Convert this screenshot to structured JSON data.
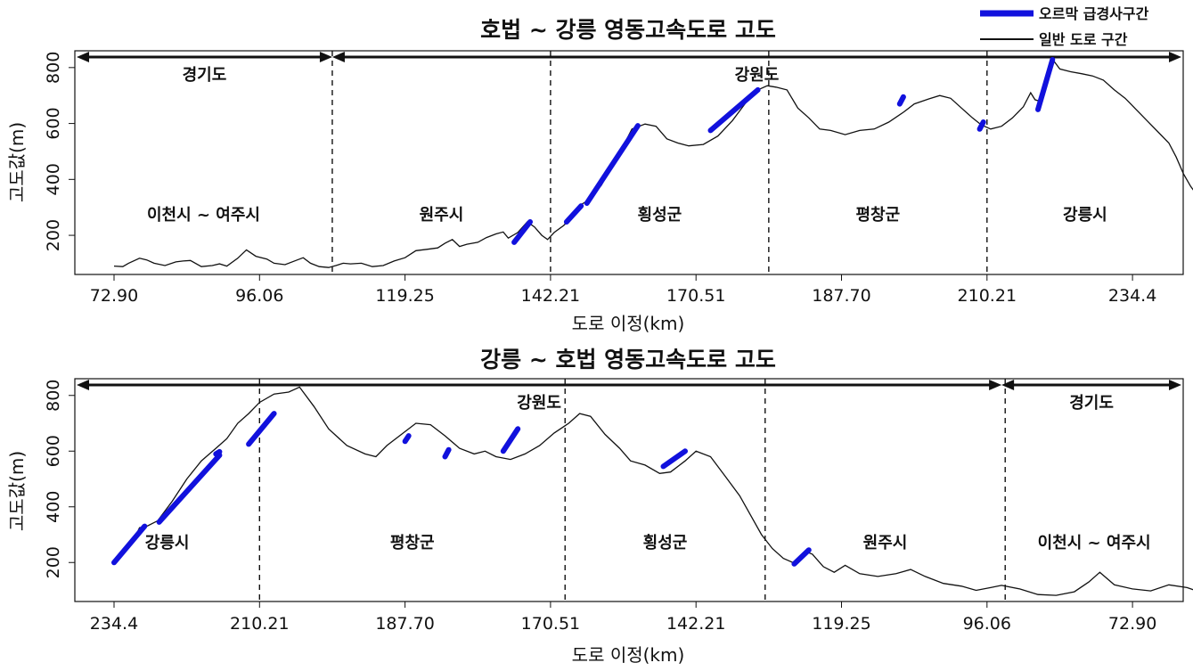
{
  "legend": {
    "steep": "오르막 급경사구간",
    "normal": "일반 도로 구간",
    "steep_color": "#1111dd",
    "normal_color": "#111111"
  },
  "chart_data": [
    {
      "type": "line",
      "title": "호법 ~ 강릉 영동고속도로 고도",
      "xlabel": "도로 이정(km)",
      "ylabel": "고도값(m)",
      "ylim": [
        60,
        860
      ],
      "yticks": [
        200,
        400,
        600,
        800
      ],
      "xticks": [
        "72.90",
        "96.06",
        "119.25",
        "142.21",
        "170.51",
        "187.70",
        "210.21",
        "234.4"
      ],
      "provinces": [
        {
          "name": "경기도",
          "from": 0,
          "to": 3
        },
        {
          "name": "강원도",
          "from": 3,
          "to": 8
        }
      ],
      "regions": [
        "이천시 ~ 여주시",
        "원주시",
        "횡성군",
        "평창군",
        "강릉시"
      ],
      "boundaries": [
        3,
        6,
        9,
        12
      ],
      "profile": [
        [
          0,
          90
        ],
        [
          0.12,
          88
        ],
        [
          0.2,
          100
        ],
        [
          0.35,
          118
        ],
        [
          0.45,
          112
        ],
        [
          0.55,
          100
        ],
        [
          0.7,
          92
        ],
        [
          0.85,
          105
        ],
        [
          0.95,
          108
        ],
        [
          1.05,
          110
        ],
        [
          1.2,
          88
        ],
        [
          1.35,
          92
        ],
        [
          1.45,
          98
        ],
        [
          1.55,
          90
        ],
        [
          1.7,
          118
        ],
        [
          1.82,
          148
        ],
        [
          1.95,
          125
        ],
        [
          2.1,
          115
        ],
        [
          2.2,
          100
        ],
        [
          2.35,
          95
        ],
        [
          2.5,
          110
        ],
        [
          2.6,
          120
        ],
        [
          2.7,
          100
        ],
        [
          2.82,
          88
        ],
        [
          2.95,
          85
        ],
        [
          3.05,
          92
        ],
        [
          3.15,
          100
        ],
        [
          3.25,
          98
        ],
        [
          3.4,
          100
        ],
        [
          3.55,
          88
        ],
        [
          3.7,
          92
        ],
        [
          3.85,
          108
        ],
        [
          4.0,
          120
        ],
        [
          4.15,
          145
        ],
        [
          4.3,
          150
        ],
        [
          4.45,
          155
        ],
        [
          4.55,
          172
        ],
        [
          4.65,
          185
        ],
        [
          4.75,
          160
        ],
        [
          4.85,
          168
        ],
        [
          5.0,
          175
        ],
        [
          5.12,
          192
        ],
        [
          5.25,
          205
        ],
        [
          5.35,
          212
        ],
        [
          5.42,
          190
        ],
        [
          5.55,
          210
        ],
        [
          5.68,
          248
        ],
        [
          5.78,
          230
        ],
        [
          5.88,
          200
        ],
        [
          5.96,
          185
        ],
        [
          6.05,
          210
        ],
        [
          6.18,
          235
        ],
        [
          6.32,
          270
        ],
        [
          6.42,
          310
        ],
        [
          6.55,
          330
        ],
        [
          6.7,
          380
        ],
        [
          6.85,
          450
        ],
        [
          7.0,
          520
        ],
        [
          7.12,
          580
        ],
        [
          7.3,
          598
        ],
        [
          7.45,
          590
        ],
        [
          7.6,
          545
        ],
        [
          7.75,
          530
        ],
        [
          7.9,
          520
        ],
        [
          8.1,
          525
        ],
        [
          8.3,
          555
        ],
        [
          8.5,
          610
        ],
        [
          8.7,
          680
        ],
        [
          8.85,
          720
        ],
        [
          8.98,
          735
        ],
        [
          9.1,
          730
        ],
        [
          9.25,
          720
        ],
        [
          9.4,
          655
        ],
        [
          9.55,
          620
        ],
        [
          9.7,
          580
        ],
        [
          9.85,
          575
        ],
        [
          10.05,
          560
        ],
        [
          10.25,
          575
        ],
        [
          10.45,
          580
        ],
        [
          10.65,
          605
        ],
        [
          10.85,
          640
        ],
        [
          11.0,
          670
        ],
        [
          11.2,
          688
        ],
        [
          11.35,
          700
        ],
        [
          11.5,
          690
        ],
        [
          11.65,
          655
        ],
        [
          11.8,
          620
        ],
        [
          11.92,
          595
        ],
        [
          12.05,
          580
        ],
        [
          12.2,
          590
        ],
        [
          12.35,
          620
        ],
        [
          12.5,
          660
        ],
        [
          12.6,
          710
        ],
        [
          12.66,
          685
        ],
        [
          12.72,
          680
        ],
        [
          12.82,
          760
        ],
        [
          12.9,
          830
        ],
        [
          13.0,
          795
        ],
        [
          13.15,
          785
        ],
        [
          13.3,
          778
        ],
        [
          13.45,
          770
        ],
        [
          13.6,
          755
        ],
        [
          13.75,
          720
        ],
        [
          13.9,
          690
        ],
        [
          14.05,
          650
        ],
        [
          14.2,
          610
        ],
        [
          14.35,
          570
        ],
        [
          14.5,
          530
        ],
        [
          14.6,
          480
        ],
        [
          14.7,
          420
        ],
        [
          14.8,
          375
        ],
        [
          14.9,
          340
        ],
        [
          14.98,
          320
        ],
        [
          15.05,
          300
        ],
        [
          15.12,
          255
        ],
        [
          15.18,
          280
        ],
        [
          15.25,
          225
        ]
      ],
      "steep": [
        [
          [
            5.5,
            175
          ],
          [
            5.72,
            248
          ]
        ],
        [
          [
            6.22,
            248
          ],
          [
            6.42,
            305
          ]
        ],
        [
          [
            6.5,
            315
          ],
          [
            7.2,
            592
          ]
        ],
        [
          [
            8.2,
            575
          ],
          [
            8.85,
            720
          ]
        ],
        [
          [
            10.8,
            670
          ],
          [
            10.85,
            695
          ]
        ],
        [
          [
            11.9,
            580
          ],
          [
            11.95,
            605
          ]
        ],
        [
          [
            12.7,
            650
          ],
          [
            12.9,
            828
          ]
        ]
      ]
    },
    {
      "type": "line",
      "title": "강릉 ~ 호법 영동고속도로 고도",
      "xlabel": "도로 이정(km)",
      "ylabel": "고도값(m)",
      "ylim": [
        60,
        860
      ],
      "yticks": [
        200,
        400,
        600,
        800
      ],
      "xticks": [
        "234.4",
        "210.21",
        "187.70",
        "170.51",
        "142.21",
        "119.25",
        "96.06",
        "72.90"
      ],
      "provinces": [
        {
          "name": "강원도",
          "from": 0,
          "to": 12.2
        },
        {
          "name": "경기도",
          "from": 12.2,
          "to": 15.2
        }
      ],
      "regions": [
        "강릉시",
        "평창군",
        "횡성군",
        "원주시",
        "이천시 ~ 여주시"
      ],
      "boundaries": [
        2.0,
        6.2,
        8.95,
        12.25
      ],
      "profile": [
        [
          0,
          205
        ],
        [
          0.25,
          270
        ],
        [
          0.35,
          325
        ],
        [
          0.45,
          330
        ],
        [
          0.6,
          350
        ],
        [
          0.8,
          420
        ],
        [
          1.0,
          500
        ],
        [
          1.2,
          565
        ],
        [
          1.4,
          610
        ],
        [
          1.55,
          645
        ],
        [
          1.7,
          700
        ],
        [
          1.85,
          735
        ],
        [
          2.0,
          775
        ],
        [
          2.2,
          805
        ],
        [
          2.4,
          812
        ],
        [
          2.55,
          830
        ],
        [
          2.75,
          760
        ],
        [
          2.95,
          680
        ],
        [
          3.2,
          620
        ],
        [
          3.45,
          590
        ],
        [
          3.6,
          580
        ],
        [
          3.75,
          620
        ],
        [
          3.95,
          660
        ],
        [
          4.15,
          700
        ],
        [
          4.35,
          695
        ],
        [
          4.55,
          655
        ],
        [
          4.75,
          610
        ],
        [
          4.95,
          590
        ],
        [
          5.1,
          600
        ],
        [
          5.25,
          580
        ],
        [
          5.45,
          570
        ],
        [
          5.65,
          590
        ],
        [
          5.85,
          620
        ],
        [
          6.05,
          665
        ],
        [
          6.25,
          700
        ],
        [
          6.4,
          735
        ],
        [
          6.55,
          725
        ],
        [
          6.75,
          660
        ],
        [
          6.95,
          610
        ],
        [
          7.1,
          565
        ],
        [
          7.3,
          550
        ],
        [
          7.5,
          520
        ],
        [
          7.65,
          525
        ],
        [
          7.85,
          565
        ],
        [
          8.0,
          600
        ],
        [
          8.2,
          580
        ],
        [
          8.4,
          510
        ],
        [
          8.6,
          440
        ],
        [
          8.75,
          370
        ],
        [
          8.9,
          300
        ],
        [
          9.05,
          250
        ],
        [
          9.2,
          215
        ],
        [
          9.35,
          198
        ],
        [
          9.5,
          240
        ],
        [
          9.6,
          230
        ],
        [
          9.75,
          185
        ],
        [
          9.9,
          165
        ],
        [
          10.05,
          190
        ],
        [
          10.25,
          160
        ],
        [
          10.5,
          150
        ],
        [
          10.75,
          160
        ],
        [
          10.95,
          175
        ],
        [
          11.15,
          150
        ],
        [
          11.4,
          125
        ],
        [
          11.65,
          115
        ],
        [
          11.85,
          100
        ],
        [
          12.05,
          110
        ],
        [
          12.2,
          118
        ],
        [
          12.45,
          105
        ],
        [
          12.7,
          85
        ],
        [
          12.95,
          82
        ],
        [
          13.2,
          95
        ],
        [
          13.4,
          130
        ],
        [
          13.55,
          165
        ],
        [
          13.75,
          120
        ],
        [
          14.0,
          105
        ],
        [
          14.25,
          98
        ],
        [
          14.5,
          120
        ],
        [
          14.75,
          110
        ],
        [
          14.95,
          92
        ],
        [
          15.15,
          92
        ]
      ],
      "steep": [
        [
          [
            0,
            200
          ],
          [
            0.42,
            330
          ]
        ],
        [
          [
            0.62,
            345
          ],
          [
            1.45,
            585
          ]
        ],
        [
          [
            1.4,
            590
          ],
          [
            1.45,
            598
          ]
        ],
        [
          [
            1.85,
            625
          ],
          [
            2.2,
            735
          ]
        ],
        [
          [
            4.0,
            635
          ],
          [
            4.05,
            655
          ]
        ],
        [
          [
            4.55,
            580
          ],
          [
            4.6,
            605
          ]
        ],
        [
          [
            5.35,
            600
          ],
          [
            5.55,
            680
          ]
        ],
        [
          [
            7.55,
            545
          ],
          [
            7.85,
            600
          ]
        ],
        [
          [
            9.35,
            195
          ],
          [
            9.55,
            245
          ]
        ]
      ]
    }
  ]
}
